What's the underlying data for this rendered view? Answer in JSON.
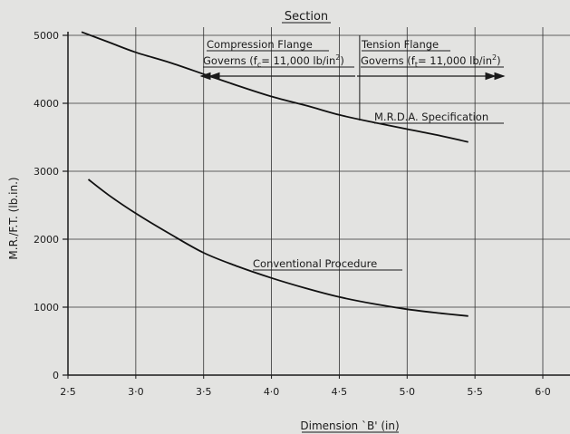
{
  "chart_data": {
    "type": "line",
    "title": "Section",
    "xlabel": "Dimension `B' (in)",
    "ylabel": "M.R./F.T. (lb.in.)",
    "xlim": [
      2.5,
      6.2
    ],
    "ylim": [
      0,
      5200
    ],
    "x_ticks": [
      2.5,
      3.0,
      3.5,
      4.0,
      4.5,
      5.0,
      5.5,
      6.0
    ],
    "x_tick_labels": [
      "2·5",
      "3·0",
      "3·5",
      "4·0",
      "4·5",
      "5·0",
      "5·5",
      "6·0"
    ],
    "y_ticks": [
      0,
      1000,
      2000,
      3000,
      4000,
      5000
    ],
    "y_tick_labels": [
      "0",
      "1000",
      "2000",
      "3000",
      "4000",
      "5000"
    ],
    "grid": true,
    "series": [
      {
        "name": "M.R.D.A. Specification",
        "x": [
          2.6,
          2.8,
          3.0,
          3.25,
          3.5,
          3.75,
          4.0,
          4.25,
          4.5,
          4.75,
          5.0,
          5.25,
          5.45
        ],
        "values": [
          5050,
          4900,
          4750,
          4600,
          4430,
          4260,
          4100,
          3970,
          3830,
          3720,
          3620,
          3520,
          3430
        ]
      },
      {
        "name": "Conventional Procedure",
        "x": [
          2.65,
          2.8,
          3.0,
          3.25,
          3.5,
          3.75,
          4.0,
          4.25,
          4.5,
          4.75,
          5.0,
          5.25,
          5.45
        ],
        "values": [
          2880,
          2650,
          2380,
          2080,
          1800,
          1600,
          1430,
          1280,
          1150,
          1050,
          970,
          910,
          870
        ]
      }
    ],
    "divider_x": 4.65,
    "annotations": {
      "compression_line1": "Compression Flange",
      "compression_line2_a": "Governs (f",
      "compression_sub": "c",
      "compression_line2_b": "= 11,000 lb/in",
      "compression_sup": "2",
      "compression_line2_c": ")",
      "tension_line1": "Tension Flange",
      "tension_line2_a": "Governs (f",
      "tension_sub": "t",
      "tension_line2_b": "= 11,000 lb/in",
      "tension_sup": "2",
      "tension_line2_c": ")"
    }
  }
}
